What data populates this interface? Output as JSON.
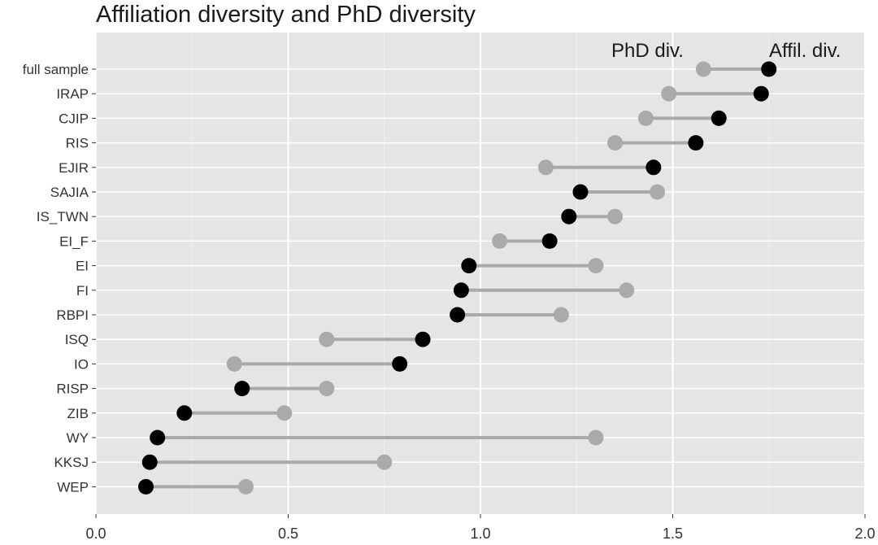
{
  "chart_data": {
    "type": "dumbbell",
    "title": "Affiliation diversity and PhD diversity",
    "annotations": [
      "PhD div.",
      "Affil. div."
    ],
    "xlabel": "",
    "ylabel": "",
    "xlim": [
      0,
      2
    ],
    "x_ticks": [
      "0.0",
      "0.5",
      "1.0",
      "1.5",
      "2.0"
    ],
    "grid": true,
    "series_colors": {
      "phd": "#aaaaaa",
      "affil": "#000000"
    },
    "categories": [
      "full sample",
      "IRAP",
      "CJIP",
      "RIS",
      "EJIR",
      "SAJIA",
      "IS_TWN",
      "EI_F",
      "EI",
      "FI",
      "RBPI",
      "ISQ",
      "IO",
      "RISP",
      "ZIB",
      "WY",
      "KKSJ",
      "WEP"
    ],
    "phd_div": [
      1.58,
      1.49,
      1.43,
      1.35,
      1.17,
      1.46,
      1.35,
      1.05,
      1.3,
      1.38,
      1.21,
      0.6,
      0.36,
      0.6,
      0.49,
      1.3,
      0.75,
      0.39
    ],
    "affil_div": [
      1.75,
      1.73,
      1.62,
      1.56,
      1.45,
      1.26,
      1.23,
      1.18,
      0.97,
      0.95,
      0.94,
      0.85,
      0.79,
      0.38,
      0.23,
      0.16,
      0.14,
      0.13
    ]
  }
}
